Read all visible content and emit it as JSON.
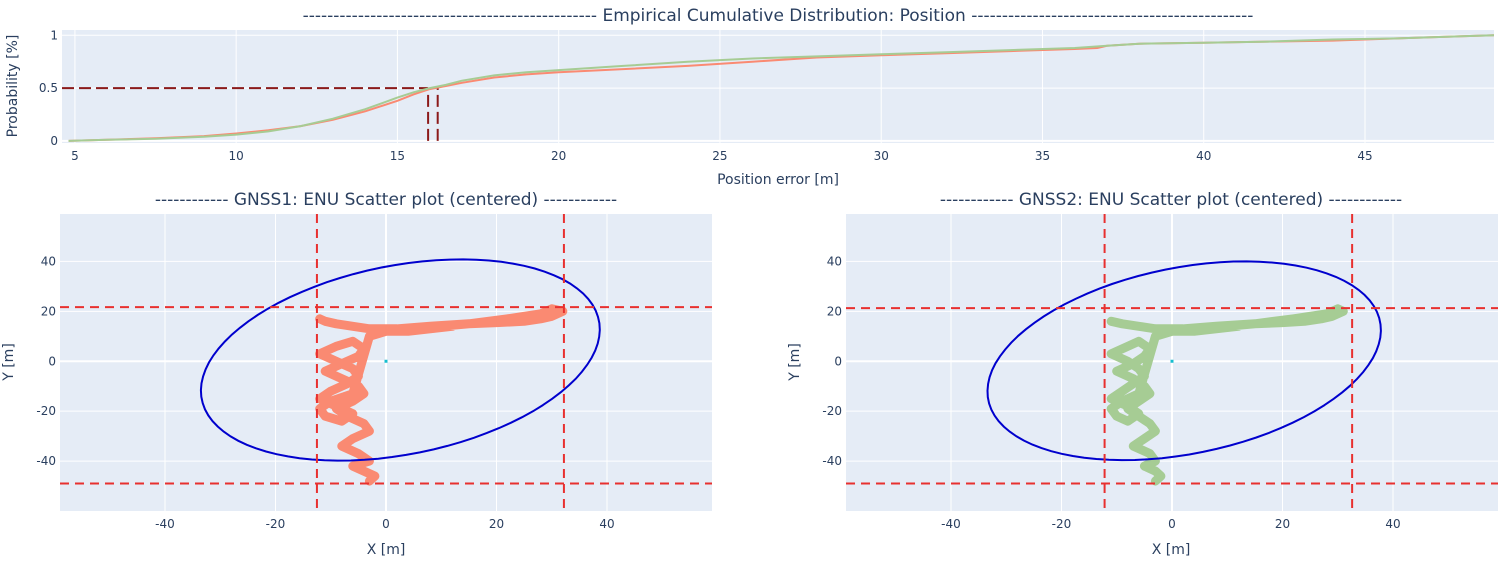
{
  "chart_data": [
    {
      "type": "line",
      "title": "------------------------------------------------  Empirical Cumulative Distribution: Position  ----------------------------------------------",
      "xlabel": "Position error [m]",
      "ylabel": "Probability [%]",
      "xlim": [
        4.6,
        49
      ],
      "ylim": [
        -0.02,
        1.05
      ],
      "xticks": [
        5,
        10,
        15,
        20,
        25,
        30,
        35,
        40,
        45
      ],
      "yticks": [
        0,
        0.5,
        1
      ],
      "grid": true,
      "series": [
        {
          "color": "#fa8a72",
          "x": [
            4.8,
            6,
            7.5,
            9,
            10,
            11,
            12,
            13,
            14,
            15,
            15.5,
            16,
            16.5,
            17,
            18,
            19,
            20,
            22,
            24,
            26,
            28,
            30,
            32,
            34,
            36,
            36.7,
            37,
            38,
            40,
            42,
            44,
            46,
            48,
            49
          ],
          "y": [
            0,
            0.01,
            0.025,
            0.045,
            0.07,
            0.1,
            0.14,
            0.2,
            0.28,
            0.38,
            0.44,
            0.49,
            0.52,
            0.55,
            0.6,
            0.63,
            0.65,
            0.68,
            0.71,
            0.75,
            0.79,
            0.81,
            0.83,
            0.85,
            0.87,
            0.88,
            0.9,
            0.92,
            0.93,
            0.94,
            0.95,
            0.97,
            0.99,
            1.0
          ]
        },
        {
          "color": "#a6cc94",
          "x": [
            4.8,
            6,
            7.5,
            9,
            10,
            11,
            12,
            13,
            14,
            15,
            15.5,
            16,
            16.5,
            17,
            18,
            19,
            20,
            22,
            24,
            26,
            28,
            30,
            32,
            34,
            36,
            37,
            38,
            40,
            42,
            44,
            46,
            48,
            49
          ],
          "y": [
            0,
            0.01,
            0.02,
            0.04,
            0.06,
            0.09,
            0.14,
            0.21,
            0.3,
            0.41,
            0.46,
            0.5,
            0.53,
            0.57,
            0.62,
            0.65,
            0.67,
            0.71,
            0.75,
            0.78,
            0.8,
            0.82,
            0.84,
            0.86,
            0.88,
            0.9,
            0.92,
            0.93,
            0.94,
            0.96,
            0.97,
            0.99,
            1.0
          ]
        }
      ],
      "reference_lines": [
        {
          "color": "#8b1a1a",
          "x": [
            4.6,
            15.95
          ],
          "y": [
            0.5,
            0.5
          ]
        },
        {
          "color": "#8b1a1a",
          "x": [
            15.95,
            15.95
          ],
          "y": [
            0,
            0.5
          ]
        },
        {
          "color": "#8b1a1a",
          "x": [
            16.25,
            16.25
          ],
          "y": [
            0,
            0.5
          ]
        }
      ]
    },
    {
      "type": "scatter",
      "title": "------------ GNSS1: ENU Scatter plot (centered) ------------",
      "xlabel": "X [m]",
      "ylabel": "Y [m]",
      "xlim": [
        -59,
        59
      ],
      "ylim": [
        -60,
        59
      ],
      "xticks": [
        -40,
        -20,
        0,
        20,
        40
      ],
      "yticks": [
        -40,
        -20,
        0,
        20,
        40
      ],
      "grid": true,
      "color": "#fa8a72",
      "track": {
        "x": [
          -3,
          -2,
          -4,
          -6,
          -3,
          -5,
          -8,
          -6,
          -3,
          -4,
          -7,
          -9,
          -6,
          -4,
          -5,
          -8,
          -11,
          -8,
          -5,
          -4,
          -6,
          -9,
          -12,
          -9,
          -6,
          -5,
          -7,
          -10,
          -12,
          -9,
          -6,
          -8,
          -11,
          -12,
          -10,
          -6,
          -3,
          0,
          5,
          10,
          15,
          20,
          25,
          28,
          30,
          31,
          32,
          30,
          28,
          22,
          15,
          8,
          2,
          -3,
          -6,
          -9,
          -11,
          -12,
          -11,
          -9,
          -6,
          -3,
          0,
          4,
          8,
          12
        ],
        "y": [
          -48,
          -46,
          -44,
          -42,
          -40,
          -37,
          -34,
          -31,
          -28,
          -25,
          -22,
          -19,
          -16,
          -13,
          -10,
          -7,
          -4,
          -1,
          2,
          5,
          8,
          6,
          3,
          0,
          -3,
          -6,
          -9,
          -12,
          -15,
          -18,
          -21,
          -24,
          -22,
          -19,
          -16,
          -13,
          10,
          12,
          13,
          14,
          15,
          15.5,
          16,
          17,
          18,
          19,
          20,
          21,
          19,
          17,
          15,
          14,
          13,
          13,
          14,
          15,
          16,
          17,
          16,
          15,
          14,
          13,
          12,
          12,
          13,
          14
        ]
      },
      "ellipse": {
        "color": "#0000cd",
        "center": [
          2.6,
          0.5
        ],
        "semi_axes": [
          31.5,
          44
        ],
        "rotation_deg": 35
      },
      "bounds": {
        "color": "#e8302f",
        "x": [
          -12.5,
          32.2
        ],
        "y": [
          -49,
          21.7
        ]
      },
      "center_marker": [
        0,
        0
      ]
    },
    {
      "type": "scatter",
      "title": "------------ GNSS2: ENU Scatter plot (centered) ------------",
      "xlabel": "X [m]",
      "ylabel": "Y [m]",
      "xlim": [
        -59,
        59
      ],
      "ylim": [
        -60,
        59
      ],
      "xticks": [
        -40,
        -20,
        0,
        20,
        40
      ],
      "yticks": [
        -40,
        -20,
        0,
        20,
        40
      ],
      "grid": true,
      "color": "#a6cc94",
      "track": {
        "x": [
          -3,
          -2,
          -3,
          -5,
          -3,
          -4,
          -7,
          -5,
          -3,
          -4,
          -6,
          -8,
          -6,
          -4,
          -5,
          -7,
          -10,
          -7,
          -5,
          -4,
          -6,
          -8,
          -11,
          -8,
          -6,
          -5,
          -7,
          -9,
          -11,
          -8,
          -6,
          -8,
          -10,
          -11,
          -9,
          -6,
          -3,
          0,
          5,
          10,
          15,
          20,
          24,
          27,
          29,
          30,
          31,
          30,
          28,
          22,
          15,
          8,
          2,
          -3,
          -6,
          -9,
          -11,
          -11,
          -9,
          -6,
          -3,
          0,
          4,
          8,
          12
        ],
        "y": [
          -48,
          -46,
          -44,
          -42,
          -40,
          -37,
          -34,
          -31,
          -28,
          -25,
          -22,
          -19,
          -16,
          -13,
          -10,
          -7,
          -4,
          -1,
          2,
          5,
          8,
          6,
          3,
          0,
          -3,
          -6,
          -9,
          -12,
          -15,
          -18,
          -21,
          -24,
          -22,
          -19,
          -16,
          -13,
          10,
          12,
          13,
          14,
          15,
          15.5,
          16,
          17,
          18,
          19,
          20,
          21,
          19,
          17,
          15,
          14,
          13,
          13,
          14,
          15,
          16,
          16,
          15,
          14,
          13,
          12,
          12,
          13,
          14
        ]
      },
      "ellipse": {
        "color": "#0000cd",
        "center": [
          2.2,
          0.2
        ],
        "semi_axes": [
          31,
          43.5
        ],
        "rotation_deg": 35
      },
      "bounds": {
        "color": "#e8302f",
        "x": [
          -12.2,
          32.6
        ],
        "y": [
          -49,
          21.3
        ]
      },
      "center_marker": [
        0,
        0
      ]
    }
  ]
}
